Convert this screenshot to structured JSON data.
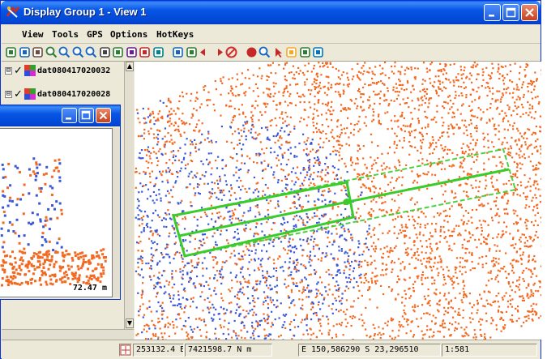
{
  "window": {
    "title": "Display Group 1 - View 1",
    "icon": "tntmips-app-icon"
  },
  "menu": [
    "View",
    "Tools",
    "GPS",
    "Options",
    "HotKeys"
  ],
  "toolbar_icons": [
    "select-icon",
    "layer-icon",
    "pan-icon",
    "zoom-box-icon",
    "zoom-in-icon",
    "zoom-out-icon",
    "zoom-fit-icon",
    "full-view-icon",
    "redraw-icon",
    "layer-manager-icon",
    "gps-icon",
    "cancel-redraw-icon",
    "view-3d-icon",
    "profile-icon",
    "back-icon",
    "forward-icon",
    "stop-icon",
    "record-icon",
    "magnify-icon",
    "pointer-icon",
    "measure-icon",
    "legend-icon",
    "grid-icon"
  ],
  "layers": [
    {
      "name": "dat080417020032",
      "checked": true,
      "expander": "⊟"
    },
    {
      "name": "dat080417020028",
      "checked": true,
      "expander": "⊟"
    }
  ],
  "status": {
    "easting": "253132.4 E",
    "northing": "7421598.7 N m",
    "lat_lon": "E 150,586290  S 23,296510",
    "scale": "1:581"
  },
  "profile": {
    "distance_label": "72.47 m"
  },
  "colors": {
    "titlebar": "#0655e5",
    "points_orange": "#f26a22",
    "points_blue": "#3a57d6",
    "profile_outline": "#39cc2a"
  }
}
